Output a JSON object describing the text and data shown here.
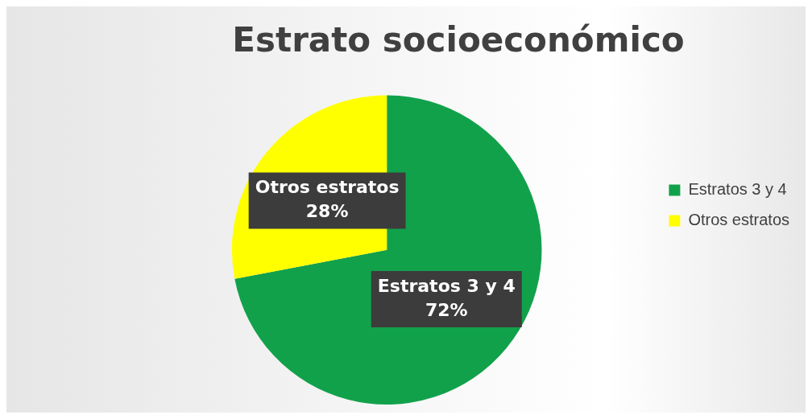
{
  "chart_data": {
    "type": "pie",
    "title": "Estrato socioeconómico",
    "categories": [
      "Estratos 3 y 4",
      "Otros estratos"
    ],
    "values": [
      72,
      28
    ],
    "colors": [
      "#12a14b",
      "#ffff00"
    ],
    "value_labels": [
      "72%",
      "28%"
    ],
    "legend": "right"
  }
}
